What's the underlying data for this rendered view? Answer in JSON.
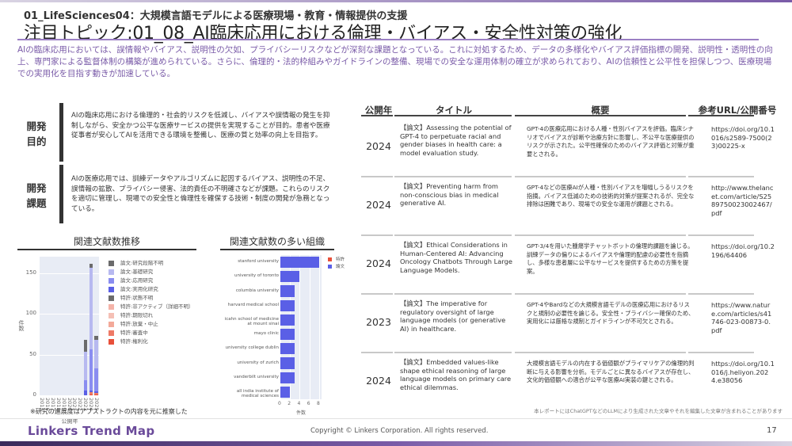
{
  "header": {
    "subtitle": "01_LifeSciences04：大規模言語モデルによる医療現場・教育・情報提供の支援",
    "title": "注目トピック:01_08_AI臨床応用における倫理・バイアス・安全性対策の強化",
    "lead": "AIの臨床応用においては、誤情報やバイアス、説明性の欠如、プライバシーリスクなどが深刻な課題となっている。これに対処するため、データの多様化やバイアス評価指標の開発、説明性・透明性の向上、専門家による監督体制の構築が進められている。さらに、倫理的・法的枠組みやガイドラインの整備、現場での安全な運用体制の確立が求められており、AIの信頼性と公平性を担保しつつ、医療現場での実用化を目指す動きが加速している。"
  },
  "goals": [
    {
      "label_1": "開発",
      "label_2": "目的",
      "text": "AIの臨床応用における倫理的・社会的リスクを低減し、バイアスや誤情報の発生を抑制しながら、安全かつ公平な医療サービスの提供を実現することが目的。患者や医療従事者が安心してAIを活用できる環境を整備し、医療の質と効率の向上を目指す。"
    },
    {
      "label_1": "開発",
      "label_2": "課題",
      "text": "AIの医療応用では、訓練データやアルゴリズムに起因するバイアス、説明性の不足、誤情報の拡散、プライバシー侵害、法的責任の不明確さなどが課題。これらのリスクを適切に管理し、現場での安全性と倫理性を確保する技術・制度の開発が急務となっている。"
    }
  ],
  "charts": {
    "trend_title": "関連文献数推移",
    "org_title": "関連文献数の多い組織",
    "footnote": "※研究の進展度はアブストラクトの内容を元に推察した"
  },
  "chart_data": [
    {
      "type": "bar",
      "title": "関連文献数推移",
      "xlabel": "公開年",
      "ylabel": "件数",
      "categories": [
        "2015",
        "2016",
        "2017",
        "2018",
        "2019",
        "2020",
        "2021",
        "2022",
        "2023",
        "2024",
        "2025"
      ],
      "yticks": [
        0,
        50,
        100,
        150
      ],
      "ylim": [
        0,
        170
      ],
      "stacked": true,
      "series": [
        {
          "name": "論文:研究段階不明",
          "color": "#6b6b6b",
          "values": [
            0,
            0,
            0,
            0,
            0,
            0,
            0,
            0,
            15,
            5,
            5
          ]
        },
        {
          "name": "論文:基礎研究",
          "color": "#b7b9f0",
          "values": [
            0,
            0,
            0,
            0,
            0,
            0,
            0,
            0,
            35,
            100,
            35
          ]
        },
        {
          "name": "論文:応用研究",
          "color": "#8a8df0",
          "values": [
            0,
            0,
            0,
            0,
            0,
            0,
            0,
            0,
            12,
            50,
            28
          ]
        },
        {
          "name": "論文:実用化研究",
          "color": "#5a5fe6",
          "values": [
            0,
            0,
            0,
            0,
            0,
            0,
            0,
            0,
            6,
            2,
            2
          ]
        },
        {
          "name": "特許:状態不明",
          "color": "#6b6b6b",
          "values": [
            0,
            0,
            0,
            0,
            0,
            0,
            0,
            0,
            0,
            0,
            0
          ]
        },
        {
          "name": "特許:非アクティブ（詳細不明）",
          "color": "#f4b3a8",
          "values": [
            0,
            0,
            0,
            0,
            0,
            0,
            0,
            0,
            0,
            0,
            0
          ]
        },
        {
          "name": "特許:期限切れ",
          "color": "#f5c0b5",
          "values": [
            0,
            0,
            0,
            0,
            0,
            0,
            0,
            0,
            0,
            0,
            0
          ]
        },
        {
          "name": "特許:放棄・中止",
          "color": "#f3a999",
          "values": [
            0,
            0,
            0,
            0,
            0,
            0,
            0,
            0,
            0,
            0,
            0
          ]
        },
        {
          "name": "特許:審査中",
          "color": "#ee7a66",
          "values": [
            0,
            0,
            0,
            0,
            0,
            0,
            0,
            0,
            0,
            3,
            2
          ]
        },
        {
          "name": "特許:権利化",
          "color": "#e8503a",
          "values": [
            0,
            0,
            0,
            0,
            0,
            0,
            0,
            0,
            0,
            1,
            1
          ]
        }
      ],
      "totals": [
        0,
        0,
        0,
        0,
        0,
        0,
        0,
        0,
        70,
        161,
        73
      ],
      "legend_position": "right"
    },
    {
      "type": "bar",
      "orientation": "horizontal",
      "title": "関連文献数の多い組織",
      "xlabel": "件数",
      "ylabel": "",
      "categories": [
        "stanford university",
        "university of toronto",
        "columbia university",
        "harvard medical school",
        "icahn school of medicine at mount sinai",
        "mayo clinic",
        "university college dublin",
        "university of zurich",
        "vanderbilt university",
        "all india institute of medical sciences"
      ],
      "xticks": [
        0,
        2,
        4,
        6,
        8
      ],
      "xlim": [
        0,
        8.5
      ],
      "series": [
        {
          "name": "特許",
          "color": "#e8503a",
          "values": [
            0,
            0,
            0,
            0,
            0,
            0,
            0,
            0,
            0,
            0
          ]
        },
        {
          "name": "論文",
          "color": "#5a5fe6",
          "values": [
            8,
            4,
            3,
            3,
            3,
            3,
            3,
            3,
            3,
            2
          ]
        }
      ],
      "legend_position": "right"
    }
  ],
  "table": {
    "headers": {
      "year": "公開年",
      "title": "タイトル",
      "summary": "概要",
      "url": "参考URL/公開番号"
    },
    "rows": [
      {
        "year": "2024",
        "title": "【論文】Assessing the potential of GPT-4 to perpetuate racial and gender biases in health care: a model evaluation study.",
        "summary": "GPT-4の医療応用における人種・性別バイアスを評価。臨床シナリオでバイアスが診断や治療方針に影響し、不公平な医療提供のリスクが示された。公平性確保のためのバイアス評価と対策が重要とされる。",
        "url": "https://doi.org/10.1016/s2589-7500(23)00225-x"
      },
      {
        "year": "2024",
        "title": "【論文】Preventing harm from non-conscious bias in medical generative AI.",
        "summary": "GPT-4などの医療AIが人種・性別バイアスを増幅しうるリスクを指摘。バイアス低減のための技術的対策が提案されるが、完全な排除は困難であり、現場での安全な運用が課題とされる。",
        "url": "http://www.thelancet.com/article/S2589750023002467/pdf"
      },
      {
        "year": "2024",
        "title": "【論文】Ethical Considerations in Human-Centered AI: Advancing Oncology Chatbots Through Large Language Models.",
        "summary": "GPT-3/4を用いた腫瘍学チャットボットの倫理的課題を論じる。訓練データの偏りによるバイアスや倫理的配慮の必要性を指摘し、多様な患者層に公平なサービスを提供するための方策を提案。",
        "url": "https://doi.org/10.2196/64406"
      },
      {
        "year": "2023",
        "title": "【論文】The imperative for regulatory oversight of large language models (or generative AI) in healthcare.",
        "summary": "GPT-4やBardなどの大規模言語モデルの医療応用におけるリスクと規制の必要性を論じる。安全性・プライバシー確保のため、実用化には厳格な規制とガイドラインが不可欠とされる。",
        "url": "https://www.nature.com/articles/s41746-023-00873-0.pdf"
      },
      {
        "year": "2024",
        "title": "【論文】Embedded values-like shape ethical reasoning of large language models on primary care ethical dilemmas.",
        "summary": "大規模言語モデルの内在する価値観がプライマリケアの倫理的判断に与える影響を分析。モデルごとに異なるバイアスが存在し、文化的価値観への適合が公平な医療AI実装の鍵とされる。",
        "url": "https://doi.org/10.1016/j.heliyon.2024.e38056"
      }
    ],
    "disclaimer": "本レポートにはChatGPTなどのLLMにより生成された文章やそれを編集した文章が含まれることがあります"
  },
  "footer": {
    "brand": "Linkers Trend Map",
    "copyright": "Copyright © Linkers Corporation. All rights reserved.",
    "page": "17"
  }
}
